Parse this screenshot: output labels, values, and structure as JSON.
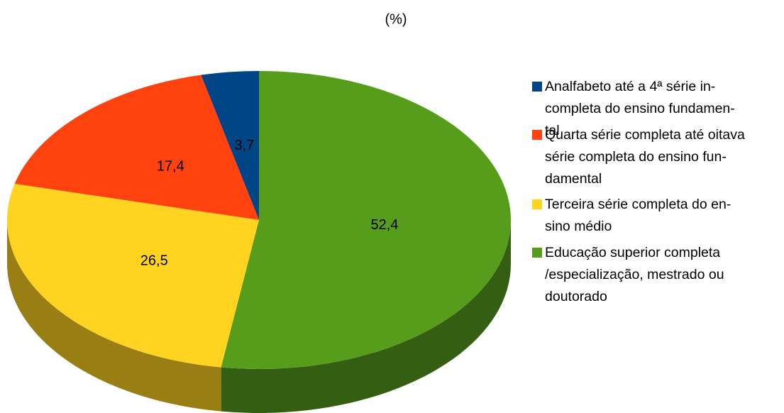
{
  "chart_data": {
    "type": "pie",
    "title": "(%)",
    "categories": [
      "Analfabeto até a 4ª série in-\ncompleta do ensino fundamen-\ntal",
      "Quarta série completa até oitava\nsérie completa do ensino fun-\ndamental",
      "Terceira série completa do en-\nsino médio",
      "Educação superior completa\n/especialização, mestrado ou\ndoutorado"
    ],
    "values": [
      3.7,
      17.4,
      26.5,
      52.4
    ],
    "value_labels": [
      "3,7",
      "17,4",
      "26,5",
      "52,4"
    ],
    "colors": [
      "#004586",
      "#ff420e",
      "#ffd320",
      "#579d1c"
    ],
    "legend": "right"
  }
}
